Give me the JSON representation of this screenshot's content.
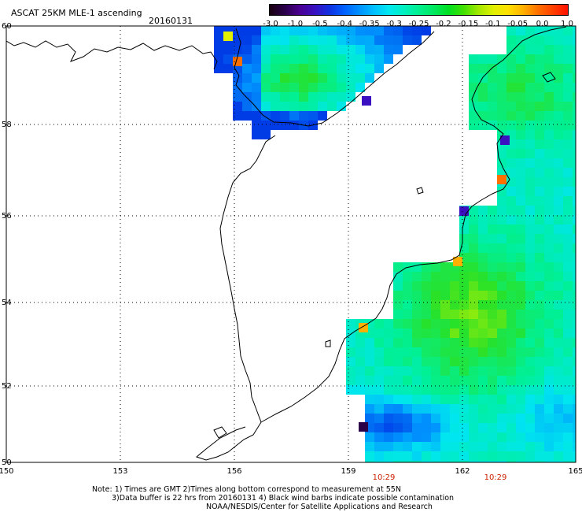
{
  "header": {
    "title": "ASCAT 25KM MLE-1 ascending",
    "date": "20160131"
  },
  "colorbar": {
    "ticks": [
      "-3.0",
      "-1.0",
      "-0.5",
      "-0.4",
      "-0.35",
      "-0.3",
      "-0.25",
      "-0.2",
      "-0.15",
      "-0.1",
      "-0.05",
      "0.0",
      "1.0"
    ],
    "colors": [
      "#1a0010",
      "#2a0048",
      "#4a0090",
      "#3a10c0",
      "#1030e0",
      "#0060ff",
      "#0090ff",
      "#00c0ff",
      "#00e8f0",
      "#00f0c0",
      "#00f090",
      "#00e860",
      "#00e020",
      "#40e000",
      "#a0e800",
      "#e0f000",
      "#ffe000",
      "#ffb000",
      "#ff7000",
      "#ff4000",
      "#ff1000"
    ]
  },
  "map": {
    "lat_labels": [
      "60",
      "58",
      "56",
      "54",
      "52",
      "50"
    ],
    "lon_labels": [
      "150",
      "153",
      "156",
      "159",
      "162",
      "165"
    ],
    "time_labels": [
      "10:29",
      "10:29"
    ],
    "time_color": "#cc2200"
  },
  "notes": {
    "line1": "Note: 1) Times are GMT 2)Times along bottom correspond to measurement at 55N",
    "line2": "3)Data buffer is 22 hrs from 20160131 4) Black wind barbs indicate possible contamination",
    "line3": "NOAA/NESDIS/Center for Satellite Applications and Research"
  }
}
